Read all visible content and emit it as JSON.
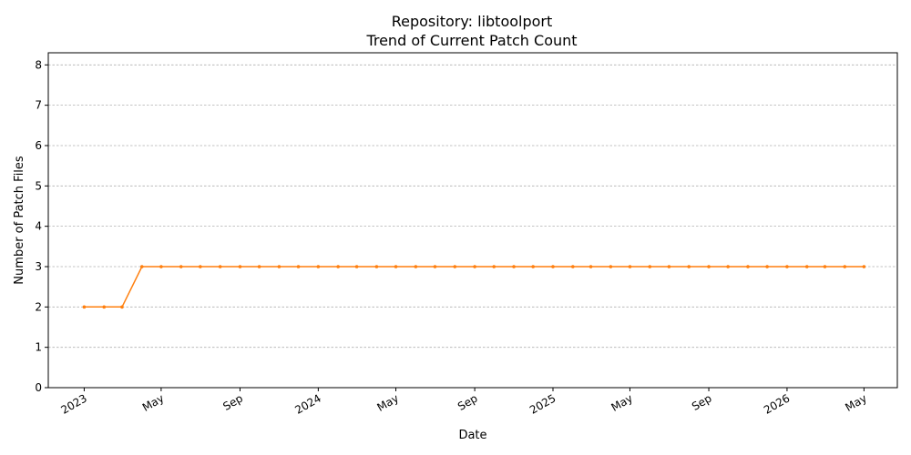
{
  "chart_data": {
    "type": "line",
    "title": "Repository: libtoolport",
    "subtitle": "Trend of Current Patch Count",
    "xlabel": "Date",
    "ylabel": "Number of Patch Files",
    "x_range": [
      "2022-11-06",
      "2026-06-22"
    ],
    "ylim": [
      0,
      8.3
    ],
    "y_ticks": [
      0,
      1,
      2,
      3,
      4,
      5,
      6,
      7,
      8
    ],
    "x_ticks": [
      {
        "date": "2023-01-01",
        "label": "2023"
      },
      {
        "date": "2023-05-01",
        "label": "May"
      },
      {
        "date": "2023-09-01",
        "label": "Sep"
      },
      {
        "date": "2024-01-01",
        "label": "2024"
      },
      {
        "date": "2024-05-01",
        "label": "May"
      },
      {
        "date": "2024-09-01",
        "label": "Sep"
      },
      {
        "date": "2025-01-01",
        "label": "2025"
      },
      {
        "date": "2025-05-01",
        "label": "May"
      },
      {
        "date": "2025-09-01",
        "label": "Sep"
      },
      {
        "date": "2026-01-01",
        "label": "2026"
      },
      {
        "date": "2026-05-01",
        "label": "May"
      }
    ],
    "grid": "y-dashed",
    "series": [
      {
        "color": "#ff7f0e",
        "x": [
          "2023-01-01",
          "2023-02-01",
          "2023-03-01",
          "2023-04-01",
          "2023-05-01",
          "2023-06-01",
          "2023-07-01",
          "2023-08-01",
          "2023-09-01",
          "2023-10-01",
          "2023-11-01",
          "2023-12-01",
          "2024-01-01",
          "2024-02-01",
          "2024-03-01",
          "2024-04-01",
          "2024-05-01",
          "2024-06-01",
          "2024-07-01",
          "2024-08-01",
          "2024-09-01",
          "2024-10-01",
          "2024-11-01",
          "2024-12-01",
          "2025-01-01",
          "2025-02-01",
          "2025-03-01",
          "2025-04-01",
          "2025-05-01",
          "2025-06-01",
          "2025-07-01",
          "2025-08-01",
          "2025-09-01",
          "2025-10-01",
          "2025-11-01",
          "2025-12-01",
          "2026-01-01",
          "2026-02-01",
          "2026-03-01",
          "2026-04-01",
          "2026-05-01"
        ],
        "values": [
          2,
          2,
          2,
          3,
          3,
          3,
          3,
          3,
          3,
          3,
          3,
          3,
          3,
          3,
          3,
          3,
          3,
          3,
          3,
          3,
          3,
          3,
          3,
          3,
          3,
          3,
          3,
          3,
          3,
          3,
          3,
          3,
          3,
          3,
          3,
          3,
          3,
          3,
          3,
          3,
          3
        ]
      }
    ]
  }
}
